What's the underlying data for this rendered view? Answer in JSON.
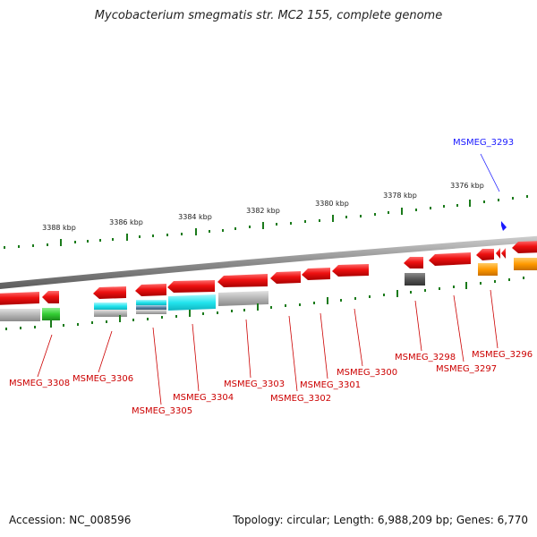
{
  "title": "Mycobacterium smegmatis str. MC2 155, complete genome",
  "footer": {
    "accession": "Accession: NC_008596",
    "summary": "Topology: circular; Length: 6,988,209 bp; Genes: 6,770"
  },
  "colors": {
    "backbone": "#8c8c8c",
    "tick": "#1a7a1a",
    "red_gene": "#ee1111",
    "highlight": "#1a1aff",
    "label": "#cc0000",
    "cyan": "#22e5ee",
    "gray": "#b4b4b4",
    "dark_gray": "#555555",
    "orange": "#ff9900",
    "green": "#33cc33"
  },
  "scale_labels": [
    "3388 kbp",
    "3386 kbp",
    "3384 kbp",
    "3382 kbp",
    "3380 kbp",
    "3378 kbp",
    "3376 kbp"
  ],
  "gene_labels": [
    {
      "text": "MSMEG_3293",
      "highlight": true
    },
    {
      "text": "MSMEG_3296"
    },
    {
      "text": "MSMEG_3297"
    },
    {
      "text": "MSMEG_3298"
    },
    {
      "text": "MSMEG_3300"
    },
    {
      "text": "MSMEG_3301"
    },
    {
      "text": "MSMEG_3302"
    },
    {
      "text": "MSMEG_3303"
    },
    {
      "text": "MSMEG_3304"
    },
    {
      "text": "MSMEG_3305"
    },
    {
      "text": "MSMEG_3306"
    },
    {
      "text": "MSMEG_3308"
    }
  ]
}
